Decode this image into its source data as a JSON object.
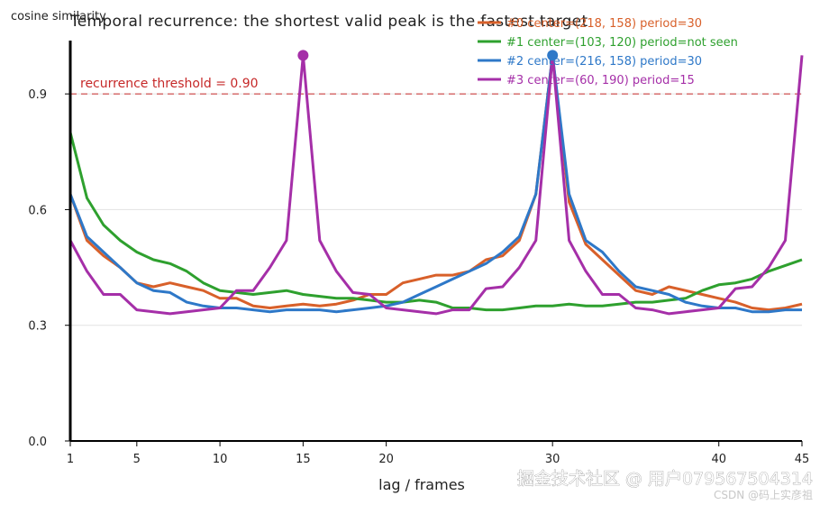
{
  "chart_data": {
    "type": "line",
    "title": "Temporal recurrence: the shortest valid peak is the fastest target",
    "ylabel": "cosine similarity",
    "xlabel": "lag / frames",
    "xlim": [
      1,
      45
    ],
    "ylim": [
      0,
      1.05
    ],
    "x_ticks": [
      1,
      5,
      10,
      15,
      20,
      30,
      40,
      45
    ],
    "y_ticks": [
      0.0,
      0.3,
      0.6,
      0.9
    ],
    "y_tick_labels": [
      "0.0",
      "0.3",
      "0.6",
      "0.9"
    ],
    "grid": "horizontal",
    "legend_position": "top-right",
    "threshold": {
      "value": 0.9,
      "label": "recurrence threshold = 0.90",
      "color": "#c62828"
    },
    "x": [
      1,
      2,
      3,
      4,
      5,
      6,
      7,
      8,
      9,
      10,
      11,
      12,
      13,
      14,
      15,
      16,
      17,
      18,
      19,
      20,
      21,
      22,
      23,
      24,
      25,
      26,
      27,
      28,
      29,
      30,
      31,
      32,
      33,
      34,
      35,
      36,
      37,
      38,
      39,
      40,
      41,
      42,
      43,
      44,
      45
    ],
    "series": [
      {
        "name": "#0 center=(218, 158) period=30",
        "color": "#d8602a",
        "values": [
          0.64,
          0.52,
          0.48,
          0.45,
          0.41,
          0.4,
          0.41,
          0.4,
          0.39,
          0.37,
          0.37,
          0.35,
          0.345,
          0.35,
          0.355,
          0.35,
          0.355,
          0.365,
          0.38,
          0.38,
          0.41,
          0.42,
          0.43,
          0.43,
          0.44,
          0.47,
          0.48,
          0.52,
          0.64,
          1.0,
          0.62,
          0.51,
          0.47,
          0.43,
          0.39,
          0.38,
          0.4,
          0.39,
          0.38,
          0.37,
          0.36,
          0.345,
          0.34,
          0.345,
          0.355
        ]
      },
      {
        "name": "#1 center=(103, 120) period=not seen",
        "color": "#2ea02e",
        "values": [
          0.8,
          0.63,
          0.56,
          0.52,
          0.49,
          0.47,
          0.46,
          0.44,
          0.41,
          0.39,
          0.385,
          0.38,
          0.385,
          0.39,
          0.38,
          0.375,
          0.37,
          0.37,
          0.365,
          0.36,
          0.36,
          0.365,
          0.36,
          0.345,
          0.345,
          0.34,
          0.34,
          0.345,
          0.35,
          0.35,
          0.355,
          0.35,
          0.35,
          0.355,
          0.36,
          0.36,
          0.365,
          0.37,
          0.39,
          0.405,
          0.41,
          0.42,
          0.44,
          0.455,
          0.47
        ]
      },
      {
        "name": "#2 center=(216, 158) period=30",
        "color": "#2e78c8",
        "values": [
          0.64,
          0.53,
          0.49,
          0.45,
          0.41,
          0.39,
          0.385,
          0.36,
          0.35,
          0.345,
          0.345,
          0.34,
          0.335,
          0.34,
          0.34,
          0.34,
          0.335,
          0.34,
          0.345,
          0.35,
          0.36,
          0.38,
          0.4,
          0.42,
          0.44,
          0.46,
          0.49,
          0.53,
          0.64,
          1.0,
          0.64,
          0.52,
          0.49,
          0.44,
          0.4,
          0.39,
          0.38,
          0.36,
          0.35,
          0.345,
          0.345,
          0.335,
          0.335,
          0.34,
          0.34
        ]
      },
      {
        "name": "#3 center=(60, 190) period=15",
        "color": "#a52fa8",
        "values": [
          0.52,
          0.44,
          0.38,
          0.38,
          0.34,
          0.335,
          0.33,
          0.335,
          0.34,
          0.345,
          0.39,
          0.39,
          0.45,
          0.52,
          1.0,
          0.52,
          0.44,
          0.385,
          0.38,
          0.345,
          0.34,
          0.335,
          0.33,
          0.34,
          0.34,
          0.395,
          0.4,
          0.45,
          0.52,
          1.0,
          0.52,
          0.44,
          0.38,
          0.38,
          0.345,
          0.34,
          0.33,
          0.335,
          0.34,
          0.345,
          0.395,
          0.4,
          0.45,
          0.52,
          1.0
        ]
      }
    ],
    "peak_markers": [
      {
        "x": 15,
        "y": 1.0,
        "color": "#a52fa8"
      },
      {
        "x": 30,
        "y": 1.0,
        "color": "#2e78c8"
      }
    ]
  },
  "watermark": {
    "main": "掘金技术社区 @ 用户079567504314",
    "sub": "CSDN @码上实彦祖"
  }
}
